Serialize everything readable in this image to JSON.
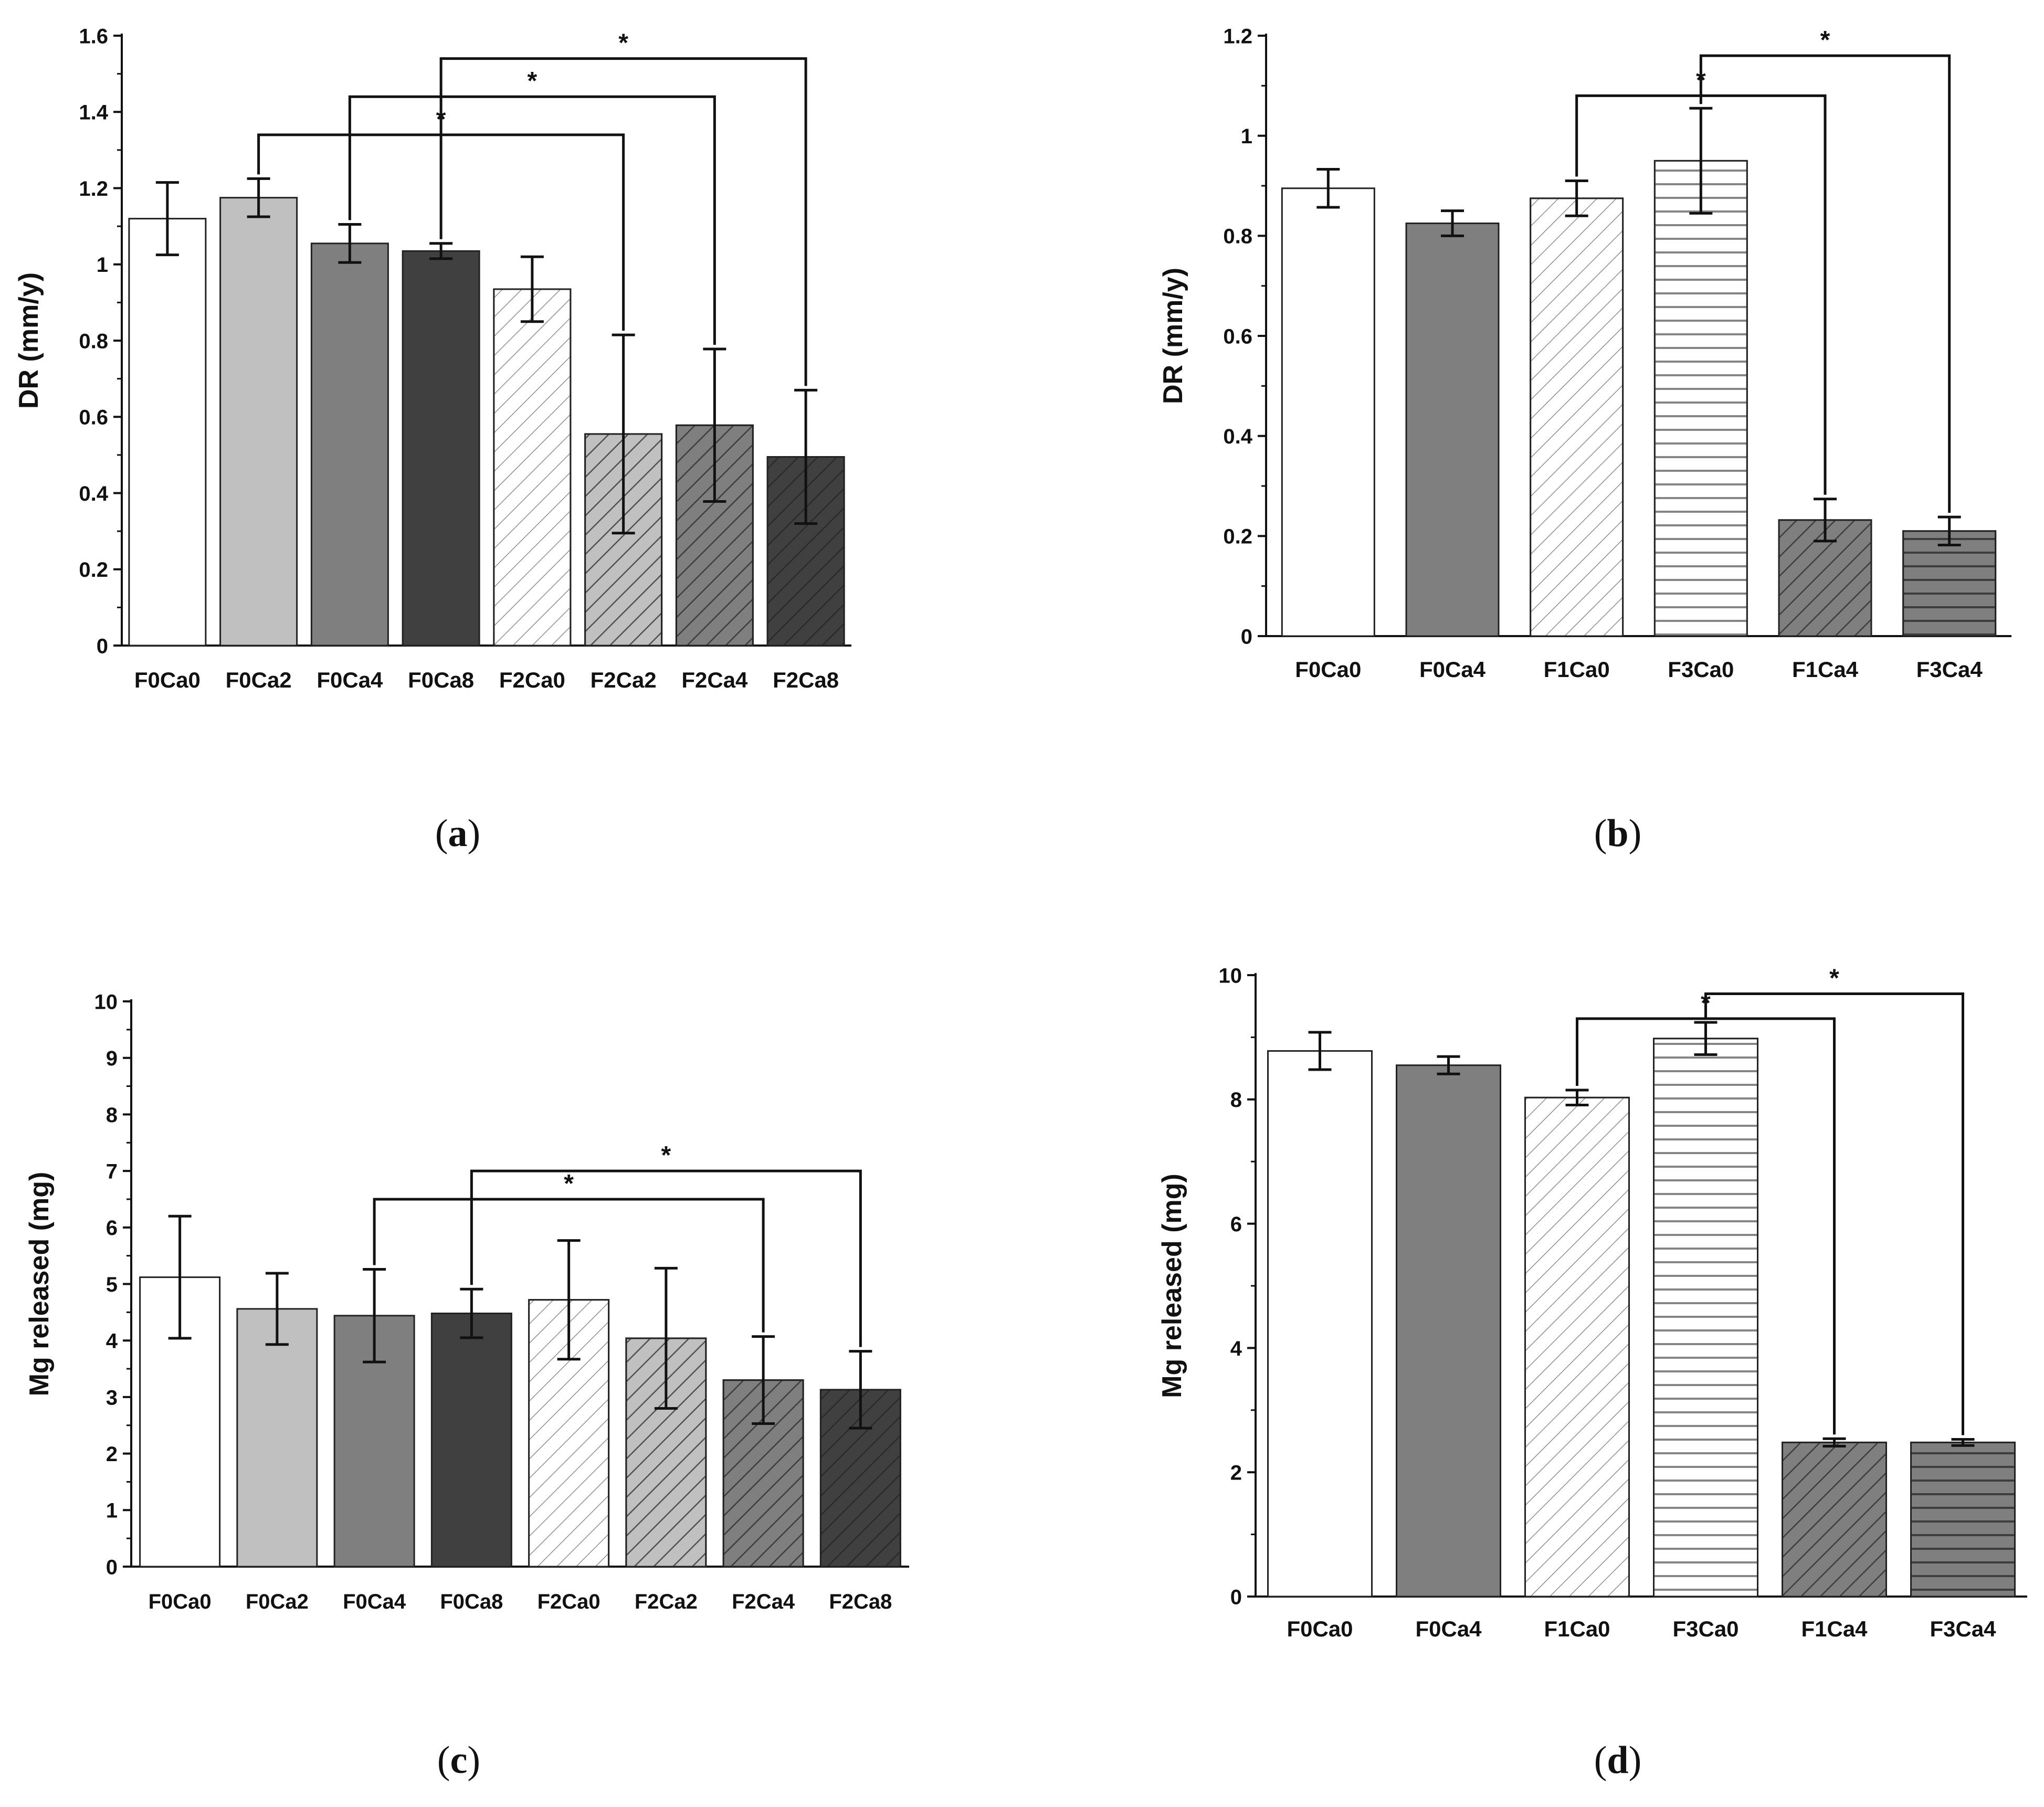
{
  "chart_data": [
    {
      "panel": "a",
      "caption": {
        "open": "(",
        "letter": "a",
        "close": ")"
      },
      "type": "bar",
      "ylabel": "DR (mm/y)",
      "ylim": [
        0,
        1.6
      ],
      "yticks": [
        "0",
        "0.2",
        "0.4",
        "0.6",
        "0.8",
        "1",
        "1.2",
        "1.4",
        "1.6"
      ],
      "categories": [
        "F0Ca0",
        "F0Ca2",
        "F0Ca4",
        "F0Ca8",
        "F2Ca0",
        "F2Ca2",
        "F2Ca4",
        "F2Ca8"
      ],
      "values": [
        1.12,
        1.175,
        1.055,
        1.035,
        0.935,
        0.555,
        0.578,
        0.495
      ],
      "errors": [
        0.095,
        0.05,
        0.05,
        0.02,
        0.085,
        0.26,
        0.2,
        0.175
      ],
      "fills": [
        "#ffffff",
        "#c0c0c0",
        "#7f7f7f",
        "#404040",
        "#ffffff",
        "#c0c0c0",
        "#7f7f7f",
        "#404040"
      ],
      "patterns": [
        "none",
        "none",
        "none",
        "none",
        "diag",
        "diag",
        "diag",
        "diag"
      ],
      "significance": [
        {
          "from": 1,
          "to": 5,
          "y": 1.34,
          "label": "*"
        },
        {
          "from": 2,
          "to": 6,
          "y": 1.44,
          "label": "*"
        },
        {
          "from": 3,
          "to": 7,
          "y": 1.54,
          "label": "*"
        }
      ]
    },
    {
      "panel": "b",
      "caption": {
        "open": "(",
        "letter": "b",
        "close": ")"
      },
      "type": "bar",
      "ylabel": "DR (mm/y)",
      "ylim": [
        0,
        1.2
      ],
      "yticks": [
        "0",
        "0.2",
        "0.4",
        "0.6",
        "0.8",
        "1",
        "1.2"
      ],
      "categories": [
        "F0Ca0",
        "F0Ca4",
        "F1Ca0",
        "F3Ca0",
        "F1Ca4",
        "F3Ca4"
      ],
      "values": [
        0.895,
        0.825,
        0.875,
        0.95,
        0.232,
        0.21
      ],
      "errors": [
        0.038,
        0.025,
        0.035,
        0.105,
        0.042,
        0.028
      ],
      "fills": [
        "#ffffff",
        "#7f7f7f",
        "#ffffff",
        "#ffffff",
        "#7f7f7f",
        "#7f7f7f"
      ],
      "patterns": [
        "none",
        "none",
        "diag",
        "horiz",
        "diag",
        "horiz"
      ],
      "significance": [
        {
          "from": 2,
          "to": 4,
          "y": 1.08,
          "label": "*"
        },
        {
          "from": 3,
          "to": 5,
          "y": 1.16,
          "label": "*"
        }
      ]
    },
    {
      "panel": "c",
      "caption": {
        "open": "(",
        "letter": "c",
        "close": ")"
      },
      "type": "bar",
      "ylabel": "Mg released (mg)",
      "ylim": [
        0,
        10
      ],
      "yticks": [
        "0",
        "1",
        "2",
        "3",
        "4",
        "5",
        "6",
        "7",
        "8",
        "9",
        "10"
      ],
      "categories": [
        "F0Ca0",
        "F0Ca2",
        "F0Ca4",
        "F0Ca8",
        "F2Ca0",
        "F2Ca2",
        "F2Ca4",
        "F2Ca8"
      ],
      "values": [
        5.12,
        4.56,
        4.44,
        4.48,
        4.72,
        4.04,
        3.3,
        3.13
      ],
      "errors": [
        1.08,
        0.63,
        0.82,
        0.43,
        1.05,
        1.24,
        0.77,
        0.68
      ],
      "fills": [
        "#ffffff",
        "#c0c0c0",
        "#7f7f7f",
        "#404040",
        "#ffffff",
        "#c0c0c0",
        "#7f7f7f",
        "#404040"
      ],
      "patterns": [
        "none",
        "none",
        "none",
        "none",
        "diag",
        "diag",
        "diag",
        "diag"
      ],
      "significance": [
        {
          "from": 2,
          "to": 6,
          "y": 6.5,
          "label": "*"
        },
        {
          "from": 3,
          "to": 7,
          "y": 7.0,
          "label": "*"
        }
      ]
    },
    {
      "panel": "d",
      "caption": {
        "open": "(",
        "letter": "d",
        "close": ")"
      },
      "type": "bar",
      "ylabel": "Mg released (mg)",
      "ylim": [
        0,
        10
      ],
      "yticks": [
        "0",
        "2",
        "4",
        "6",
        "8",
        "10"
      ],
      "categories": [
        "F0Ca0",
        "F0Ca4",
        "F1Ca0",
        "F3Ca0",
        "F1Ca4",
        "F3Ca4"
      ],
      "values": [
        8.78,
        8.55,
        8.03,
        8.98,
        2.48,
        2.48
      ],
      "errors": [
        0.3,
        0.14,
        0.12,
        0.26,
        0.06,
        0.05
      ],
      "fills": [
        "#ffffff",
        "#7f7f7f",
        "#ffffff",
        "#ffffff",
        "#7f7f7f",
        "#7f7f7f"
      ],
      "patterns": [
        "none",
        "none",
        "diag",
        "horiz",
        "diag",
        "horiz"
      ],
      "significance": [
        {
          "from": 2,
          "to": 4,
          "y": 9.3,
          "label": "*"
        },
        {
          "from": 3,
          "to": 5,
          "y": 9.7,
          "label": "*"
        }
      ]
    }
  ]
}
